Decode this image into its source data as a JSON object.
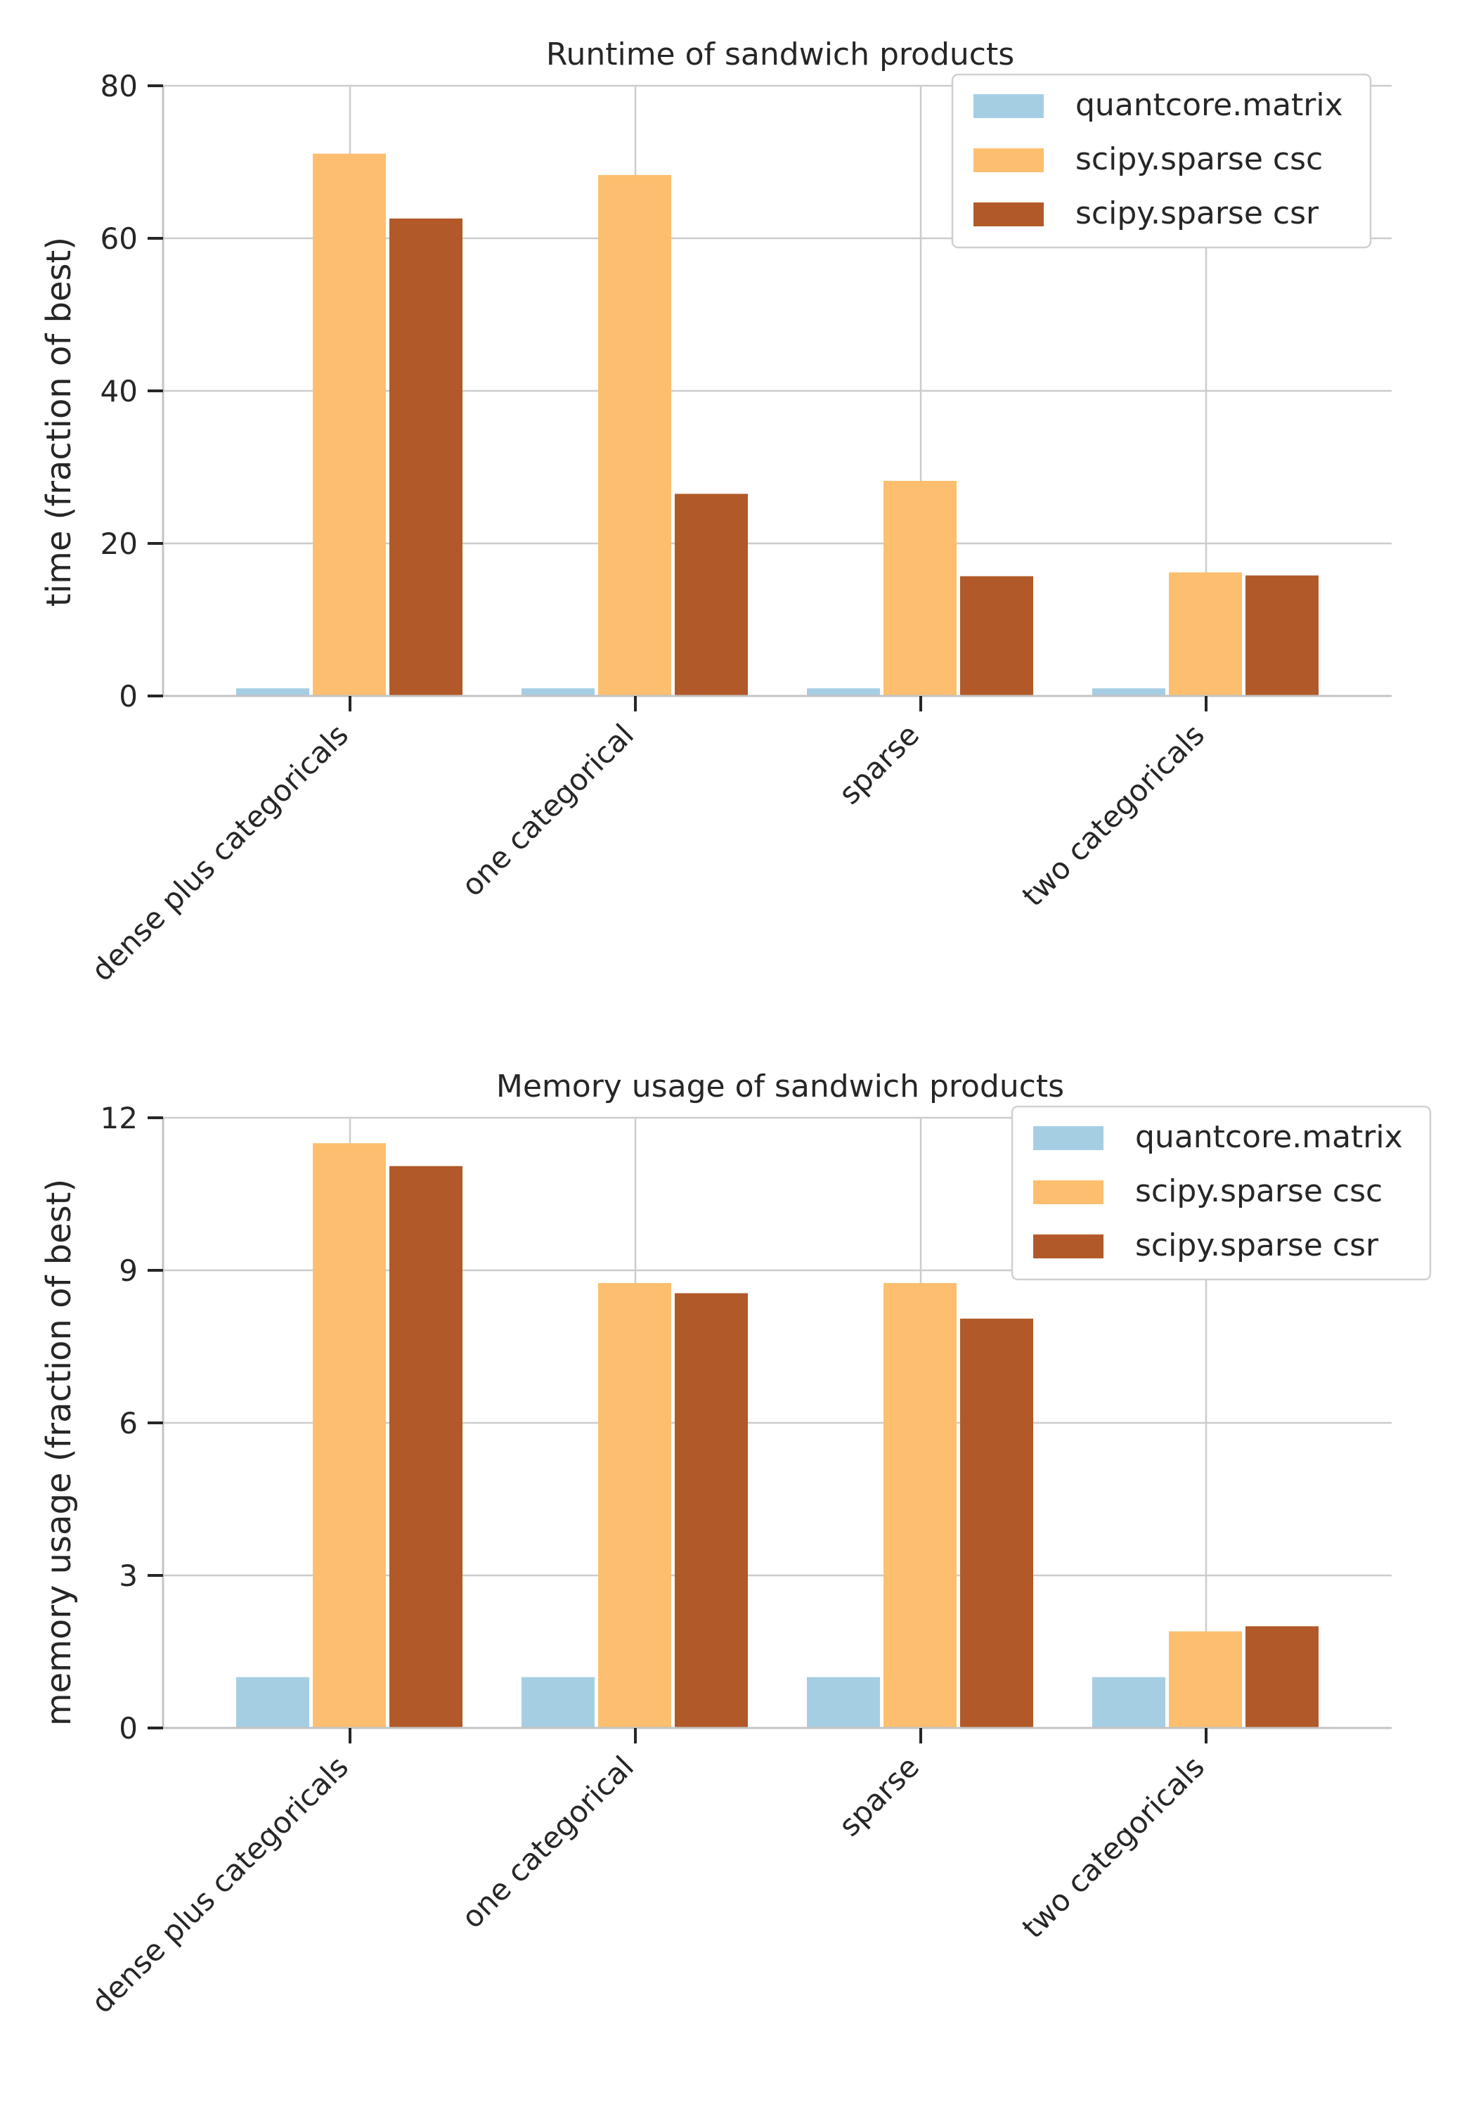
{
  "colors": {
    "quantcore": "#a6cee3",
    "csc": "#fdbf6f",
    "csr": "#b15928"
  },
  "chart_data": [
    {
      "type": "bar",
      "title": "Runtime of sandwich products",
      "xlabel": "",
      "ylabel": "time (fraction of best)",
      "categories": [
        "dense plus categoricals",
        "one categorical",
        "sparse",
        "two categoricals"
      ],
      "ylim": [
        0,
        80
      ],
      "yticks": [
        0,
        20,
        40,
        60,
        80
      ],
      "grid": true,
      "legend_position": "top-right",
      "series": [
        {
          "name": "quantcore.matrix",
          "color": "#a6cee3",
          "values": [
            1,
            1,
            1,
            1
          ]
        },
        {
          "name": "scipy.sparse csc",
          "color": "#fdbf6f",
          "values": [
            71.1,
            68.3,
            28.2,
            16.2
          ]
        },
        {
          "name": "scipy.sparse csr",
          "color": "#b15928",
          "values": [
            62.6,
            26.5,
            15.7,
            15.8
          ]
        }
      ]
    },
    {
      "type": "bar",
      "title": "Memory usage of sandwich products",
      "xlabel": "",
      "ylabel": "memory usage (fraction of best)",
      "categories": [
        "dense plus categoricals",
        "one categorical",
        "sparse",
        "two categoricals"
      ],
      "ylim": [
        0,
        12
      ],
      "yticks": [
        0,
        3,
        6,
        9,
        12
      ],
      "grid": true,
      "legend_position": "top-right",
      "series": [
        {
          "name": "quantcore.matrix",
          "color": "#a6cee3",
          "values": [
            1,
            1,
            1,
            1
          ]
        },
        {
          "name": "scipy.sparse csc",
          "color": "#fdbf6f",
          "values": [
            11.5,
            8.75,
            8.75,
            1.9
          ]
        },
        {
          "name": "scipy.sparse csr",
          "color": "#b15928",
          "values": [
            11.05,
            8.55,
            8.05,
            2.0
          ]
        }
      ]
    }
  ]
}
